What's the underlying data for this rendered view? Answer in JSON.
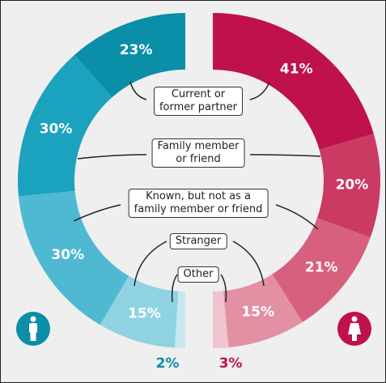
{
  "chart_data": {
    "type": "half-donut",
    "categories": [
      "Current or\nformer partner",
      "Family member\nor friend",
      "Known, but not as a\nfamily member or friend",
      "Stranger",
      "Other"
    ],
    "series": [
      {
        "side": "left",
        "colors": [
          "#0b8ea8",
          "#1ba2bf",
          "#4fb9d2",
          "#8fd3e3",
          "#c6e9f1"
        ],
        "values": [
          23,
          30,
          30,
          15,
          2
        ],
        "value_labels": [
          "23%",
          "30%",
          "30%",
          "15%",
          "2%"
        ]
      },
      {
        "side": "right",
        "colors": [
          "#bf114b",
          "#cb3a62",
          "#d8607f",
          "#e38fa4",
          "#f0c3ce"
        ],
        "values": [
          41,
          20,
          21,
          15,
          3
        ],
        "value_labels": [
          "41%",
          "20%",
          "21%",
          "15%",
          "3%"
        ]
      }
    ]
  }
}
